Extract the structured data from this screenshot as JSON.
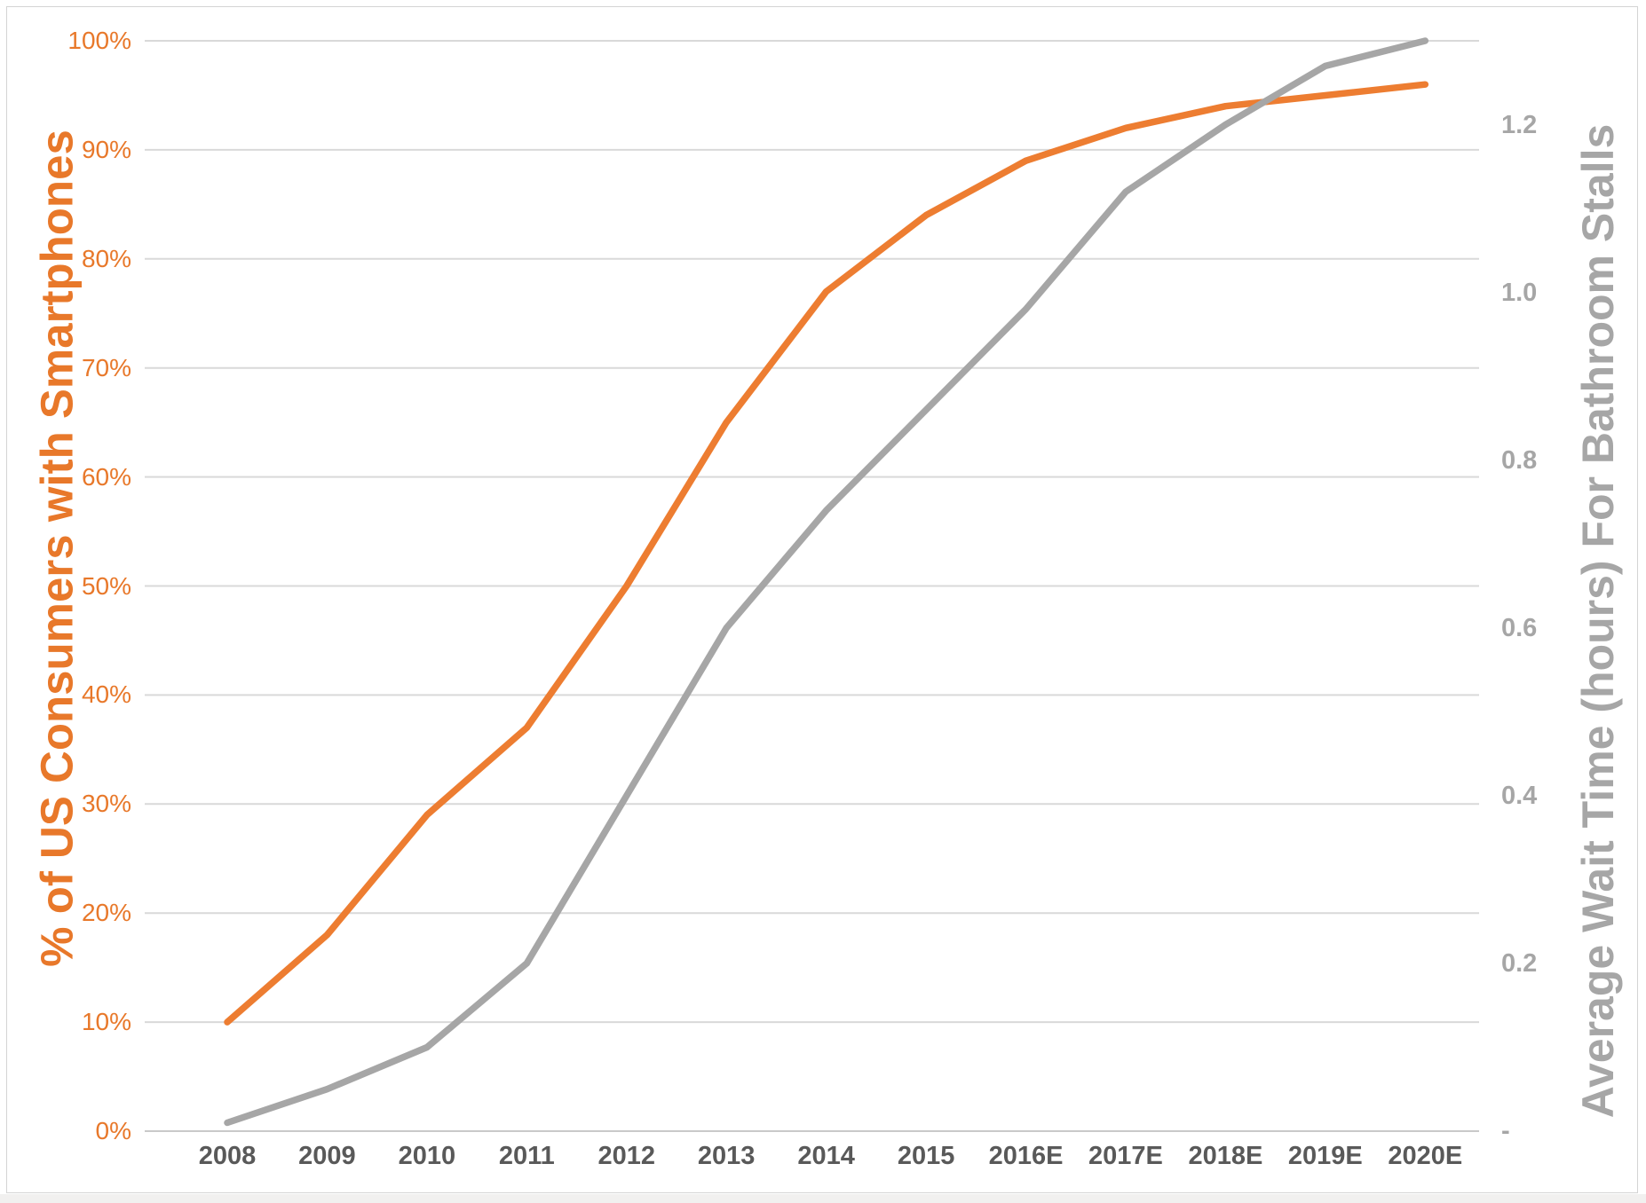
{
  "chart_data": {
    "type": "line",
    "title": "",
    "x_labels": [
      "2008",
      "2009",
      "2010",
      "2011",
      "2012",
      "2013",
      "2014",
      "2015",
      "2016E",
      "2017E",
      "2018E",
      "2019E",
      "2020E"
    ],
    "left_axis": {
      "title": "% of US Consumers with Smartphones",
      "ticks": [
        "100%",
        "90%",
        "80%",
        "70%",
        "60%",
        "50%",
        "40%",
        "30%",
        "20%",
        "10%",
        "0%"
      ],
      "min": 0,
      "max": 100,
      "color": "#e8782a"
    },
    "right_axis": {
      "title": "Average Wait Time (hours) For Bathroom Stalls",
      "ticks": [
        "1.2",
        "1.0",
        "0.8",
        "0.6",
        "0.4",
        "0.2",
        "-"
      ],
      "tick_values": [
        1.2,
        1.0,
        0.8,
        0.6,
        0.4,
        0.2,
        0
      ],
      "min": 0,
      "max": 1.3,
      "color": "#a6a6a6"
    },
    "series": [
      {
        "name": "% of US Consumers with Smartphones",
        "axis": "left",
        "color": "#ed7d31",
        "values": [
          10,
          18,
          29,
          37,
          50,
          65,
          77,
          84,
          89,
          92,
          94,
          95,
          96
        ]
      },
      {
        "name": "Average Wait Time (hours) For Bathroom Stalls",
        "axis": "right",
        "color": "#a6a6a6",
        "values": [
          0.01,
          0.05,
          0.1,
          0.2,
          0.4,
          0.6,
          0.74,
          0.86,
          0.98,
          1.12,
          1.2,
          1.27,
          1.3
        ]
      }
    ],
    "grid": true,
    "legend_position": "none",
    "gridline_color": "#d9d9d9"
  }
}
